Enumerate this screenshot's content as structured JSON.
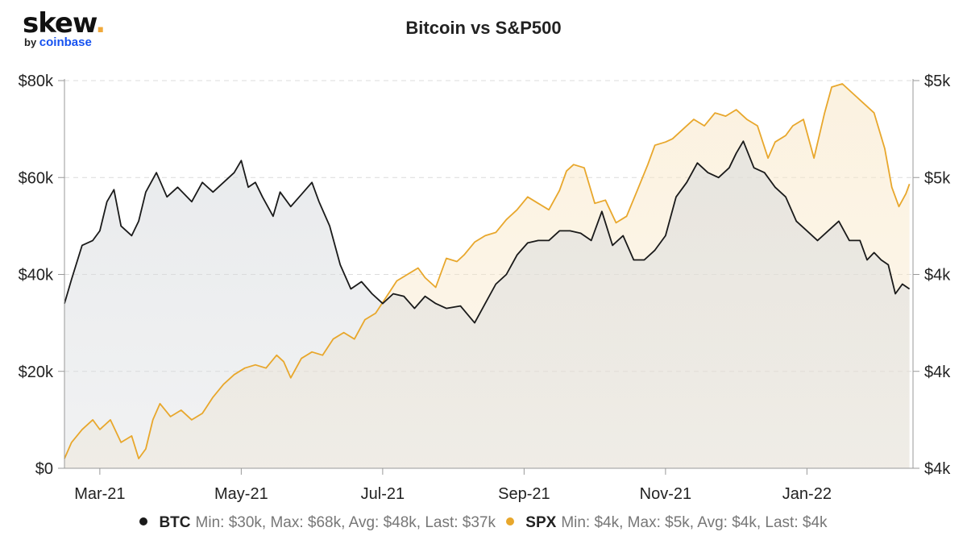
{
  "brand": {
    "name": "skew",
    "dot": ".",
    "by": "by",
    "parent": "coinbase"
  },
  "chart_data": {
    "type": "line",
    "title": "Bitcoin vs S&P500",
    "xlabel": "",
    "ylabel_left": "",
    "ylabel_right": "",
    "x_tick_labels": [
      "Mar-21",
      "May-21",
      "Jul-21",
      "Sep-21",
      "Nov-21",
      "Jan-22"
    ],
    "x_tick_months": [
      1,
      3,
      5,
      7,
      9,
      11
    ],
    "x_range_months": [
      0.5,
      12.5
    ],
    "y_left": {
      "range": [
        0,
        80000
      ],
      "ticks": [
        0,
        20000,
        40000,
        60000,
        80000
      ],
      "tick_labels": [
        "$0",
        "$20k",
        "$40k",
        "$60k",
        "$80k"
      ]
    },
    "y_right": {
      "range": [
        3600,
        4800
      ],
      "ticks": [
        3600,
        3900,
        4200,
        4500,
        4800
      ],
      "tick_labels": [
        "$4k",
        "$4k",
        "$4k",
        "$5k",
        "$5k"
      ]
    },
    "grid": true,
    "legend_position": "bottom",
    "colors": {
      "btc": "#1a1a1a",
      "spx": "#e8a72c",
      "btc_fill": "#d7dadd",
      "spx_fill": "#f8e7c7"
    },
    "series": [
      {
        "name": "BTC",
        "axis": "left",
        "stats": "Min: $30k, Max: $68k, Avg: $48k, Last: $37k",
        "x": [
          0.5,
          0.6,
          0.75,
          0.9,
          1.0,
          1.1,
          1.2,
          1.3,
          1.45,
          1.55,
          1.65,
          1.8,
          1.95,
          2.1,
          2.3,
          2.45,
          2.6,
          2.75,
          2.9,
          3.0,
          3.1,
          3.2,
          3.3,
          3.45,
          3.55,
          3.7,
          3.85,
          4.0,
          4.1,
          4.25,
          4.4,
          4.55,
          4.7,
          4.85,
          5.0,
          5.15,
          5.3,
          5.45,
          5.6,
          5.75,
          5.9,
          6.1,
          6.3,
          6.45,
          6.6,
          6.75,
          6.9,
          7.05,
          7.2,
          7.35,
          7.5,
          7.65,
          7.8,
          7.95,
          8.1,
          8.25,
          8.4,
          8.55,
          8.7,
          8.85,
          9.0,
          9.15,
          9.3,
          9.45,
          9.6,
          9.75,
          9.9,
          10.0,
          10.1,
          10.25,
          10.4,
          10.55,
          10.7,
          10.85,
          11.0,
          11.15,
          11.3,
          11.45,
          11.6,
          11.75,
          11.85,
          11.95,
          12.05,
          12.15,
          12.25,
          12.35,
          12.45
        ],
        "values": [
          34000,
          39000,
          46000,
          47000,
          49000,
          55000,
          57500,
          50000,
          48000,
          51000,
          57000,
          61000,
          56000,
          58000,
          55000,
          59000,
          57000,
          59000,
          61000,
          63500,
          58000,
          59000,
          56000,
          52000,
          57000,
          54000,
          56500,
          59000,
          55000,
          50000,
          42000,
          37000,
          38500,
          36000,
          34000,
          36000,
          35500,
          33000,
          35500,
          34000,
          33000,
          33500,
          30000,
          34000,
          38000,
          40000,
          44000,
          46500,
          47000,
          47000,
          49000,
          49000,
          48500,
          47000,
          53000,
          46000,
          48000,
          43000,
          43000,
          45000,
          48000,
          56000,
          59000,
          63000,
          61000,
          60000,
          62000,
          65000,
          67500,
          62000,
          61000,
          58000,
          56000,
          51000,
          49000,
          47000,
          49000,
          51000,
          47000,
          47000,
          43000,
          44500,
          43000,
          42000,
          36000,
          38000,
          37000
        ]
      },
      {
        "name": "SPX",
        "axis": "right",
        "stats": "Min: $4k, Max: $5k, Avg: $4k, Last: $4k",
        "x": [
          0.5,
          0.6,
          0.75,
          0.9,
          1.0,
          1.15,
          1.3,
          1.45,
          1.55,
          1.65,
          1.75,
          1.85,
          2.0,
          2.15,
          2.3,
          2.45,
          2.6,
          2.75,
          2.9,
          3.05,
          3.2,
          3.35,
          3.5,
          3.6,
          3.7,
          3.85,
          4.0,
          4.15,
          4.3,
          4.45,
          4.6,
          4.75,
          4.9,
          5.05,
          5.2,
          5.35,
          5.5,
          5.6,
          5.75,
          5.9,
          6.05,
          6.15,
          6.3,
          6.45,
          6.6,
          6.75,
          6.9,
          7.05,
          7.2,
          7.35,
          7.5,
          7.6,
          7.7,
          7.85,
          8.0,
          8.15,
          8.3,
          8.45,
          8.6,
          8.75,
          8.85,
          9.0,
          9.1,
          9.25,
          9.4,
          9.55,
          9.7,
          9.85,
          10.0,
          10.15,
          10.3,
          10.45,
          10.55,
          10.7,
          10.8,
          10.95,
          11.1,
          11.25,
          11.35,
          11.5,
          11.65,
          11.8,
          11.95,
          12.1,
          12.2,
          12.3,
          12.4,
          12.45
        ],
        "values": [
          3630,
          3680,
          3720,
          3750,
          3720,
          3750,
          3680,
          3700,
          3630,
          3660,
          3750,
          3800,
          3760,
          3780,
          3750,
          3770,
          3820,
          3860,
          3890,
          3910,
          3920,
          3910,
          3950,
          3930,
          3880,
          3940,
          3960,
          3950,
          4000,
          4020,
          4000,
          4060,
          4080,
          4130,
          4180,
          4200,
          4220,
          4190,
          4160,
          4250,
          4240,
          4260,
          4300,
          4320,
          4330,
          4370,
          4400,
          4440,
          4420,
          4400,
          4460,
          4520,
          4540,
          4530,
          4420,
          4430,
          4360,
          4380,
          4460,
          4540,
          4600,
          4610,
          4620,
          4650,
          4680,
          4660,
          4700,
          4690,
          4710,
          4680,
          4660,
          4560,
          4610,
          4630,
          4660,
          4680,
          4560,
          4700,
          4780,
          4790,
          4760,
          4730,
          4700,
          4590,
          4470,
          4410,
          4450,
          4480
        ]
      }
    ]
  }
}
